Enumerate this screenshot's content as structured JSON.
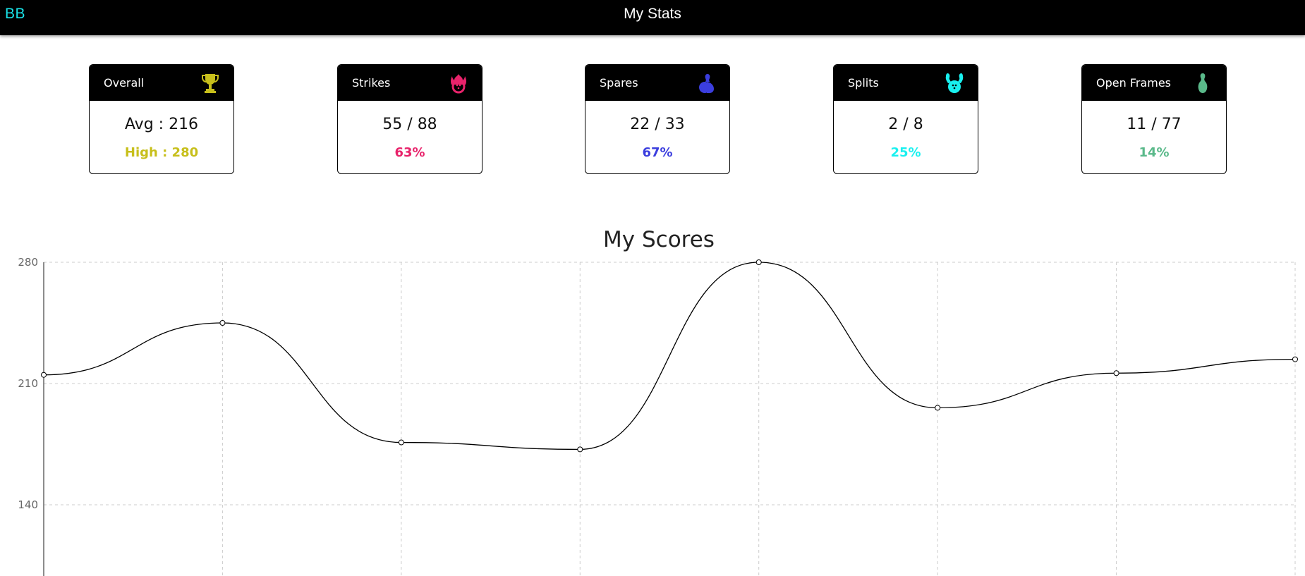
{
  "header": {
    "brand": "BB",
    "title": "My Stats"
  },
  "cards": [
    {
      "title": "Overall",
      "icon": "trophy-icon",
      "value": "Avg : 216",
      "sub": "High : 280",
      "color": "#c7bf1b"
    },
    {
      "title": "Strikes",
      "icon": "strike-icon",
      "value": "55 / 88",
      "sub": "63%",
      "color": "#e8236b"
    },
    {
      "title": "Spares",
      "icon": "spare-icon",
      "value": "22 / 33",
      "sub": "67%",
      "color": "#3b3ede"
    },
    {
      "title": "Splits",
      "icon": "split-icon",
      "value": "2 / 8",
      "sub": "25%",
      "color": "#19f0ef"
    },
    {
      "title": "Open Frames",
      "icon": "pin-icon",
      "value": "11 / 77",
      "sub": "14%",
      "color": "#5ab98a"
    }
  ],
  "chart_data": {
    "type": "line",
    "title": "My Scores",
    "x": [
      1,
      2,
      3,
      4,
      5,
      6,
      7,
      8
    ],
    "y": [
      215,
      245,
      176,
      172,
      280,
      196,
      216,
      224
    ],
    "ylim": [
      120,
      280
    ],
    "yticks": [
      140,
      210,
      280
    ],
    "grid": true,
    "line_color": "#000000",
    "grid_color": "#cccccc"
  }
}
